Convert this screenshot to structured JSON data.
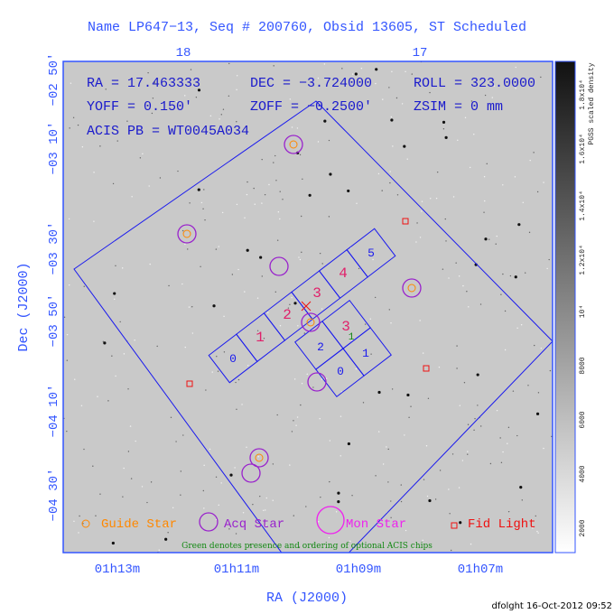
{
  "title": "Name LP647−13, Seq # 200760, Obsid 13605, ST Scheduled",
  "info": {
    "ra": "RA = 17.463333",
    "dec": "DEC = −3.724000",
    "roll": "ROLL = 323.0000",
    "yoff": "YOFF = 0.150'",
    "zoff": "ZOFF = −0.2500'",
    "zsim": "ZSIM = 0 mm",
    "acis_pb": "ACIS PB = WT0045A034"
  },
  "axes": {
    "x_title": "RA (J2000)",
    "y_title": "Dec (J2000)",
    "x_labels": [
      "01h13m",
      "01h11m",
      "01h09m",
      "01h07m"
    ],
    "top_labels": [
      "18",
      "17"
    ],
    "y_labels": [
      "−02 50'",
      "−03 10'",
      "−03 30'",
      "−03 50'",
      "−04 10'",
      "−04 30'"
    ]
  },
  "chips": {
    "s_array": [
      "0",
      "1",
      "2",
      "3",
      "4",
      "5"
    ],
    "i_array": [
      "3",
      "2",
      "1",
      "0"
    ],
    "optional": "1"
  },
  "legend": [
    "Guide Star",
    "Acq Star",
    "Mon Star",
    "Fid Light"
  ],
  "note": "Green denotes presence and ordering of optional ACIS chips",
  "colorbar": {
    "title": "PGSS scaled density",
    "labels": [
      "2000",
      "4000",
      "6000",
      "8000",
      "10⁴",
      "1.2x10⁴",
      "1.4x10⁴",
      "1.6x10⁴",
      "1.8x10⁴"
    ]
  },
  "footer": "dfolght 16-Oct-2012 09:52"
}
